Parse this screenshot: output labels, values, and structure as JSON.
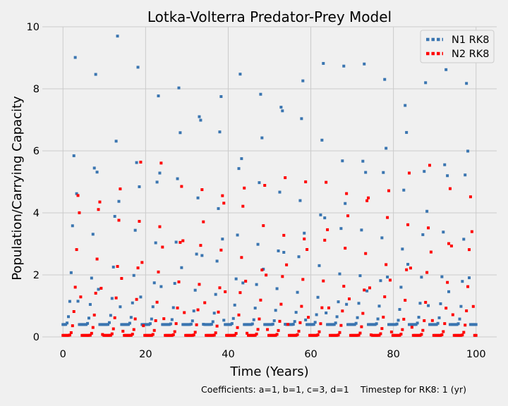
{
  "chart_data": {
    "type": "line",
    "title": "Lotka-Volterra Predator-Prey Model",
    "xlabel": "Time (Years)",
    "ylabel": "Population/Carrying Capacity",
    "xlim": [
      -5,
      105
    ],
    "ylim": [
      0,
      10
    ],
    "x_ticks": [
      0,
      20,
      40,
      60,
      80,
      100
    ],
    "y_ticks": [
      0,
      2,
      4,
      6,
      8,
      10
    ],
    "grid": true,
    "legend_position": "top-right",
    "line_style": "dotted",
    "sample_step": 0.33,
    "series": [
      {
        "name": "N1 RK8",
        "color": "#3a75b0",
        "peaks": [
          {
            "t": 3.0,
            "v": 9.35
          },
          {
            "t": 8.0,
            "v": 9.35
          },
          {
            "t": 13.2,
            "v": 9.7
          },
          {
            "t": 18.2,
            "v": 9.25
          },
          {
            "t": 23.2,
            "v": 8.8
          },
          {
            "t": 28.2,
            "v": 9.7
          },
          {
            "t": 33.2,
            "v": 9.15
          },
          {
            "t": 38.2,
            "v": 9.1
          },
          {
            "t": 43.0,
            "v": 9.6
          },
          {
            "t": 48.0,
            "v": 9.45
          },
          {
            "t": 53.0,
            "v": 9.55
          },
          {
            "t": 58.0,
            "v": 9.7
          },
          {
            "t": 63.0,
            "v": 9.35
          },
          {
            "t": 68.0,
            "v": 8.95
          },
          {
            "t": 73.0,
            "v": 9.6
          },
          {
            "t": 78.0,
            "v": 9.65
          },
          {
            "t": 83.0,
            "v": 9.25
          },
          {
            "t": 87.8,
            "v": 8.4
          },
          {
            "t": 92.8,
            "v": 9.4
          },
          {
            "t": 97.8,
            "v": 9.5
          }
        ]
      },
      {
        "name": "N2 RK8",
        "color": "#ff0000",
        "peaks": [
          {
            "t": 3.8,
            "v": 5.7
          },
          {
            "t": 8.8,
            "v": 5.5
          },
          {
            "t": 13.8,
            "v": 5.4
          },
          {
            "t": 18.8,
            "v": 5.75
          },
          {
            "t": 23.8,
            "v": 5.9
          },
          {
            "t": 28.8,
            "v": 5.45
          },
          {
            "t": 33.8,
            "v": 5.7
          },
          {
            "t": 38.8,
            "v": 5.85
          },
          {
            "t": 43.8,
            "v": 5.8
          },
          {
            "t": 48.8,
            "v": 5.3
          },
          {
            "t": 53.8,
            "v": 5.2
          },
          {
            "t": 58.8,
            "v": 5.4
          },
          {
            "t": 63.8,
            "v": 5.75
          },
          {
            "t": 68.8,
            "v": 5.7
          },
          {
            "t": 73.8,
            "v": 5.8
          },
          {
            "t": 78.8,
            "v": 5.45
          },
          {
            "t": 83.8,
            "v": 5.5
          },
          {
            "t": 88.8,
            "v": 5.75
          },
          {
            "t": 93.8,
            "v": 5.3
          },
          {
            "t": 98.8,
            "v": 5.35
          }
        ]
      }
    ],
    "baseline": {
      "N1": 0.4,
      "N2": 0.05
    },
    "rise_width": 2.5,
    "fall_width": 0.8
  },
  "captions": {
    "coefficients": "Coefficients: a=1, b=1, c=3, d=1",
    "timestep": "Timestep for RK8: 1 (yr)"
  },
  "colors": {
    "background": "#f0f0f0",
    "grid": "#cbcbcb",
    "legend_bg": "#f0f0f0",
    "legend_border": "#cccccc"
  }
}
